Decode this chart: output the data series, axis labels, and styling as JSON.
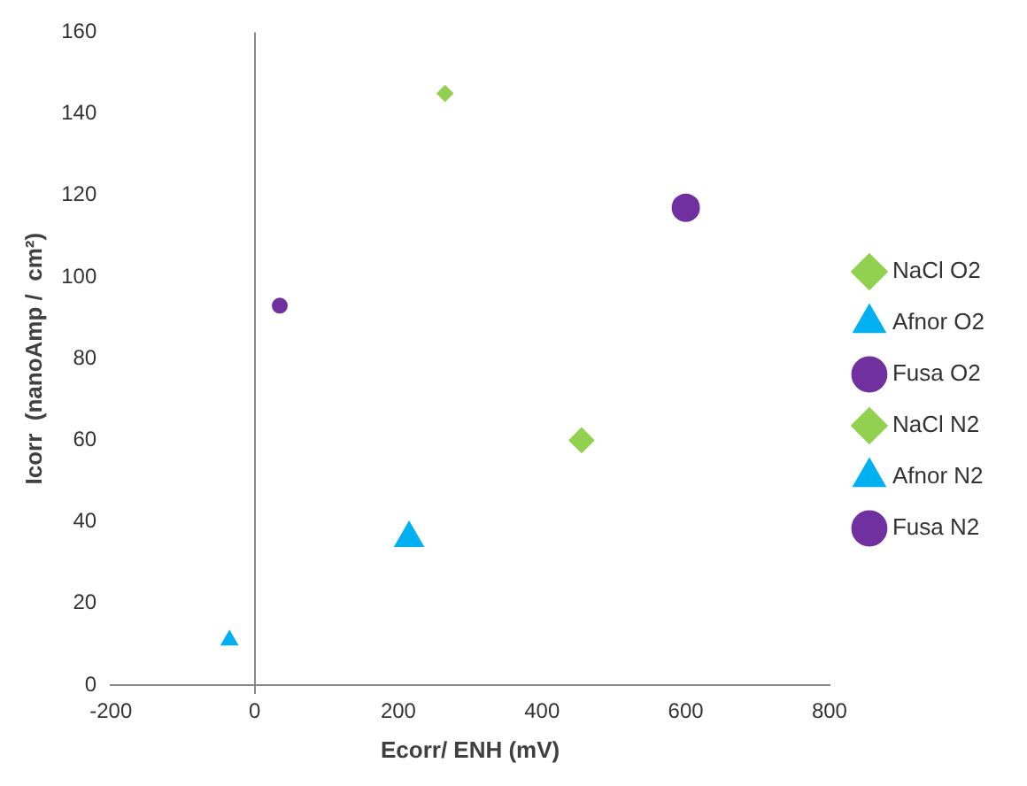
{
  "chart_data": {
    "type": "scatter",
    "xlabel": "Ecorr/ ENH (mV)",
    "ylabel": "Icorr  (nanoAmp /  cm²)",
    "xlim": [
      -200,
      800
    ],
    "xticks": [
      -200,
      0,
      200,
      400,
      600,
      800
    ],
    "ylim": [
      0,
      160
    ],
    "yticks": [
      0,
      20,
      40,
      60,
      80,
      100,
      120,
      140,
      160
    ],
    "legend": "right",
    "ref_lines": [
      {
        "axis": "x",
        "value": 0,
        "color": "#888888"
      }
    ],
    "series": [
      {
        "name": "NaCl O2",
        "color": "#92d050",
        "marker": "diamond",
        "x": [
          455
        ],
        "values": [
          60
        ]
      },
      {
        "name": "Afnor O2",
        "color": "#00b0f0",
        "marker": "triangle",
        "x": [
          215
        ],
        "values": [
          36
        ]
      },
      {
        "name": "Fusa O2",
        "color": "#7030a0",
        "marker": "circle",
        "x": [
          600
        ],
        "values": [
          117
        ]
      },
      {
        "name": "NaCl N2",
        "color": "#92d050",
        "marker": "diamond",
        "x": [
          265
        ],
        "values": [
          145
        ]
      },
      {
        "name": "Afnor N2",
        "color": "#00b0f0",
        "marker": "triangle",
        "x": [
          -35
        ],
        "values": [
          11
        ]
      },
      {
        "name": "Fusa N2",
        "color": "#7030a0",
        "marker": "circle",
        "x": [
          35
        ],
        "values": [
          93
        ]
      }
    ]
  }
}
